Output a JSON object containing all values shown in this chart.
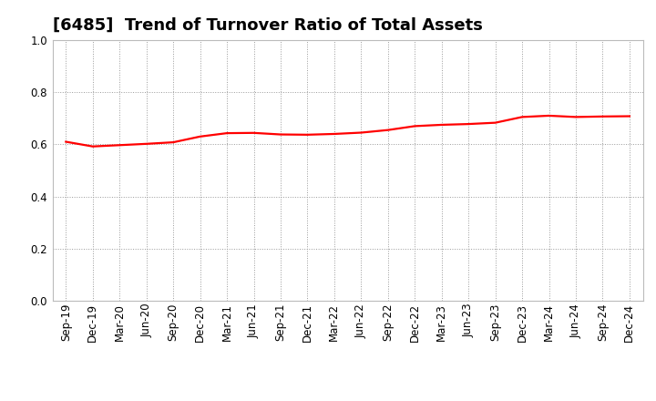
{
  "title": "[6485]  Trend of Turnover Ratio of Total Assets",
  "x_labels": [
    "Sep-19",
    "Dec-19",
    "Mar-20",
    "Jun-20",
    "Sep-20",
    "Dec-20",
    "Mar-21",
    "Jun-21",
    "Sep-21",
    "Dec-21",
    "Mar-22",
    "Jun-22",
    "Sep-22",
    "Dec-22",
    "Mar-23",
    "Jun-23",
    "Sep-23",
    "Dec-23",
    "Mar-24",
    "Jun-24",
    "Sep-24",
    "Dec-24"
  ],
  "y_values": [
    0.61,
    0.592,
    0.597,
    0.602,
    0.608,
    0.63,
    0.643,
    0.644,
    0.638,
    0.637,
    0.64,
    0.645,
    0.655,
    0.67,
    0.675,
    0.678,
    0.683,
    0.705,
    0.71,
    0.705,
    0.707,
    0.708
  ],
  "ylim": [
    0.0,
    1.0
  ],
  "yticks": [
    0.0,
    0.2,
    0.4,
    0.6,
    0.8,
    1.0
  ],
  "line_color": "#ff0000",
  "line_width": 1.6,
  "background_color": "#ffffff",
  "grid_color": "#999999",
  "title_fontsize": 13,
  "tick_fontsize": 8.5,
  "title_fontweight": "bold"
}
